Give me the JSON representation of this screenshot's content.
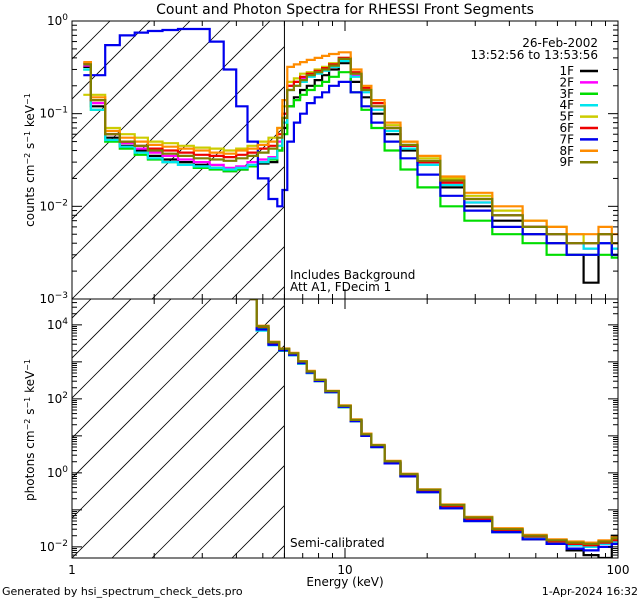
{
  "chart_data": [
    {
      "type": "line",
      "title": "Count and Photon Spectra for RHESSI Front Segments",
      "xlabel": "",
      "ylabel": "counts cm^-2 s^-1 keV^-1",
      "xscale": "log",
      "yscale": "log",
      "xlim": [
        1,
        100
      ],
      "ylim": [
        0.001,
        1
      ],
      "y_ticks": [
        {
          "value": 0.001,
          "label": "10",
          "exp": "-3"
        },
        {
          "value": 0.01,
          "label": "10",
          "exp": "-2"
        },
        {
          "value": 0.1,
          "label": "10",
          "exp": "-1"
        },
        {
          "value": 1,
          "label": "10",
          "exp": "0"
        }
      ],
      "date": "26-Feb-2002",
      "time_range": "13:52:56 to 13:53:56",
      "annotation_lines": [
        "Includes Background",
        "Att A1, FDecim 1"
      ],
      "legend_position": "top-right",
      "vertical_marker_keV": 6,
      "hatched_region_keV": [
        1,
        6
      ],
      "x": [
        1.1,
        1.25,
        1.4,
        1.6,
        1.8,
        2.0,
        2.3,
        2.6,
        3.0,
        3.4,
        3.8,
        4.2,
        4.6,
        5.0,
        5.5,
        5.8,
        6.0,
        6.3,
        6.7,
        7.0,
        7.5,
        8.0,
        8.5,
        9.0,
        10.0,
        11.0,
        12.0,
        13.0,
        15.0,
        17.0,
        20.0,
        25.0,
        30.0,
        40.0,
        50.0,
        60.0,
        70.0,
        80.0,
        90.0,
        100.0
      ],
      "series": [
        {
          "name": "1F",
          "color": "#000000",
          "values": [
            0.32,
            0.12,
            0.055,
            0.045,
            0.04,
            0.035,
            0.032,
            0.03,
            0.028,
            0.026,
            0.024,
            0.025,
            0.027,
            0.029,
            0.03,
            0.04,
            0.07,
            0.12,
            0.15,
            0.18,
            0.2,
            0.23,
            0.26,
            0.3,
            0.35,
            0.22,
            0.15,
            0.1,
            0.06,
            0.04,
            0.028,
            0.016,
            0.01,
            0.007,
            0.005,
            0.004,
            0.003,
            0.0015,
            0.004,
            0.003
          ]
        },
        {
          "name": "2F",
          "color": "#ff00ff",
          "values": [
            0.33,
            0.13,
            0.06,
            0.048,
            0.042,
            0.038,
            0.035,
            0.032,
            0.03,
            0.028,
            0.026,
            0.027,
            0.03,
            0.032,
            0.034,
            0.05,
            0.1,
            0.2,
            0.22,
            0.24,
            0.26,
            0.28,
            0.3,
            0.33,
            0.38,
            0.26,
            0.18,
            0.12,
            0.07,
            0.045,
            0.03,
            0.018,
            0.011,
            0.008,
            0.006,
            0.005,
            0.004,
            0.0035,
            0.004,
            0.0035
          ]
        },
        {
          "name": "3F",
          "color": "#00dd00",
          "values": [
            0.3,
            0.11,
            0.05,
            0.042,
            0.036,
            0.032,
            0.03,
            0.028,
            0.026,
            0.025,
            0.024,
            0.025,
            0.027,
            0.03,
            0.032,
            0.04,
            0.06,
            0.12,
            0.14,
            0.16,
            0.18,
            0.2,
            0.22,
            0.25,
            0.28,
            0.17,
            0.11,
            0.07,
            0.04,
            0.025,
            0.016,
            0.01,
            0.007,
            0.005,
            0.004,
            0.003,
            0.003,
            0.003,
            0.003,
            0.0028
          ]
        },
        {
          "name": "4F",
          "color": "#00e5ee",
          "values": [
            0.3,
            0.11,
            0.052,
            0.044,
            0.038,
            0.033,
            0.03,
            0.028,
            0.027,
            0.026,
            0.025,
            0.026,
            0.028,
            0.03,
            0.033,
            0.045,
            0.08,
            0.18,
            0.2,
            0.22,
            0.25,
            0.27,
            0.29,
            0.32,
            0.37,
            0.25,
            0.17,
            0.11,
            0.065,
            0.042,
            0.028,
            0.017,
            0.011,
            0.008,
            0.006,
            0.005,
            0.004,
            0.0035,
            0.004,
            0.0035
          ]
        },
        {
          "name": "5F",
          "color": "#cccc00",
          "values": [
            0.16,
            0.16,
            0.07,
            0.06,
            0.055,
            0.05,
            0.048,
            0.045,
            0.043,
            0.042,
            0.04,
            0.042,
            0.045,
            0.05,
            0.055,
            0.07,
            0.12,
            0.22,
            0.24,
            0.27,
            0.28,
            0.3,
            0.32,
            0.35,
            0.4,
            0.27,
            0.19,
            0.13,
            0.075,
            0.05,
            0.033,
            0.02,
            0.013,
            0.009,
            0.007,
            0.006,
            0.005,
            0.004,
            0.005,
            0.004
          ]
        },
        {
          "name": "6F",
          "color": "#ee0000",
          "values": [
            0.35,
            0.14,
            0.06,
            0.05,
            0.045,
            0.042,
            0.04,
            0.038,
            0.036,
            0.035,
            0.034,
            0.036,
            0.038,
            0.042,
            0.045,
            0.06,
            0.1,
            0.2,
            0.22,
            0.25,
            0.27,
            0.29,
            0.31,
            0.34,
            0.4,
            0.28,
            0.19,
            0.13,
            0.07,
            0.045,
            0.03,
            0.018,
            0.012,
            0.008,
            0.006,
            0.005,
            0.004,
            0.004,
            0.005,
            0.004
          ]
        },
        {
          "name": "7F",
          "color": "#0000ee",
          "values": [
            0.26,
            0.26,
            0.55,
            0.7,
            0.75,
            0.78,
            0.8,
            0.82,
            0.82,
            0.6,
            0.3,
            0.12,
            0.05,
            0.02,
            0.012,
            0.01,
            0.015,
            0.05,
            0.08,
            0.1,
            0.13,
            0.15,
            0.17,
            0.2,
            0.22,
            0.17,
            0.12,
            0.08,
            0.05,
            0.033,
            0.022,
            0.013,
            0.009,
            0.006,
            0.005,
            0.004,
            0.003,
            0.003,
            0.004,
            0.003
          ]
        },
        {
          "name": "8F",
          "color": "#ff8c00",
          "values": [
            0.36,
            0.15,
            0.065,
            0.055,
            0.05,
            0.046,
            0.044,
            0.042,
            0.04,
            0.038,
            0.037,
            0.04,
            0.042,
            0.046,
            0.05,
            0.07,
            0.14,
            0.32,
            0.34,
            0.36,
            0.38,
            0.4,
            0.42,
            0.44,
            0.46,
            0.3,
            0.2,
            0.14,
            0.08,
            0.05,
            0.035,
            0.021,
            0.014,
            0.01,
            0.007,
            0.006,
            0.005,
            0.005,
            0.006,
            0.005
          ]
        },
        {
          "name": "9F",
          "color": "#7f7f00",
          "values": [
            0.34,
            0.14,
            0.06,
            0.05,
            0.045,
            0.04,
            0.037,
            0.035,
            0.033,
            0.032,
            0.031,
            0.033,
            0.035,
            0.038,
            0.042,
            0.055,
            0.09,
            0.18,
            0.2,
            0.23,
            0.26,
            0.28,
            0.3,
            0.33,
            0.39,
            0.27,
            0.18,
            0.12,
            0.07,
            0.046,
            0.031,
            0.019,
            0.012,
            0.008,
            0.006,
            0.005,
            0.004,
            0.004,
            0.005,
            0.004
          ]
        }
      ]
    },
    {
      "type": "line",
      "title": "",
      "xlabel": "Energy (keV)",
      "ylabel": "photons cm^-2 s^-1 keV^-1",
      "xscale": "log",
      "yscale": "log",
      "xlim": [
        1,
        100
      ],
      "ylim": [
        0.005,
        50000
      ],
      "x_ticks": [
        {
          "value": 1,
          "label": "1"
        },
        {
          "value": 10,
          "label": "10"
        },
        {
          "value": 100,
          "label": "100"
        }
      ],
      "y_ticks": [
        {
          "value": 0.01,
          "label": "10",
          "exp": "-2"
        },
        {
          "value": 1,
          "label": "10",
          "exp": "0"
        },
        {
          "value": 100,
          "label": "10",
          "exp": "2"
        },
        {
          "value": 10000,
          "label": "10",
          "exp": "4"
        }
      ],
      "annotation_lines": [
        "Semi-calibrated"
      ],
      "vertical_marker_keV": 6,
      "hatched_region_keV": [
        1,
        6
      ],
      "x": [
        4.5,
        5.0,
        5.5,
        6.0,
        6.5,
        7.0,
        7.5,
        8.0,
        9.0,
        10.0,
        11.0,
        12.0,
        13.0,
        15.0,
        17.0,
        20.0,
        25.0,
        30.0,
        40.0,
        50.0,
        60.0,
        70.0,
        80.0,
        90.0,
        100.0
      ],
      "series": [
        {
          "name": "1F",
          "color": "#000000",
          "values": [
            50000,
            8000,
            3000,
            2000,
            1500,
            900,
            500,
            300,
            150,
            60,
            25,
            10,
            5,
            1.8,
            0.8,
            0.3,
            0.11,
            0.05,
            0.025,
            0.016,
            0.012,
            0.008,
            0.006,
            0.005,
            0.02
          ]
        },
        {
          "name": "2F",
          "color": "#ff00ff",
          "values": [
            50000,
            8500,
            3200,
            2100,
            1600,
            950,
            520,
            310,
            155,
            62,
            26,
            10.5,
            5.2,
            1.9,
            0.85,
            0.32,
            0.12,
            0.055,
            0.027,
            0.018,
            0.013,
            0.011,
            0.01,
            0.012,
            0.015
          ]
        },
        {
          "name": "3F",
          "color": "#00dd00",
          "values": [
            50000,
            8200,
            3100,
            2000,
            1550,
            920,
            510,
            305,
            150,
            60,
            25,
            10,
            5,
            1.85,
            0.82,
            0.31,
            0.115,
            0.052,
            0.026,
            0.017,
            0.013,
            0.011,
            0.01,
            0.012,
            0.014
          ]
        },
        {
          "name": "4F",
          "color": "#00e5ee",
          "values": [
            50000,
            7000,
            2800,
            2000,
            1500,
            900,
            500,
            300,
            150,
            60,
            25,
            10,
            5,
            1.8,
            0.8,
            0.3,
            0.11,
            0.05,
            0.025,
            0.017,
            0.013,
            0.011,
            0.01,
            0.012,
            0.014
          ]
        },
        {
          "name": "5F",
          "color": "#cccc00",
          "values": [
            50000,
            9000,
            3400,
            2200,
            1700,
            1000,
            550,
            320,
            160,
            65,
            27,
            11,
            5.5,
            2.0,
            0.9,
            0.34,
            0.13,
            0.06,
            0.03,
            0.02,
            0.015,
            0.013,
            0.012,
            0.014,
            0.016
          ]
        },
        {
          "name": "6F",
          "color": "#ee0000",
          "values": [
            50000,
            9000,
            3300,
            2150,
            1650,
            980,
            530,
            315,
            158,
            63,
            26,
            10.8,
            5.3,
            1.95,
            0.87,
            0.33,
            0.125,
            0.057,
            0.028,
            0.019,
            0.014,
            0.012,
            0.011,
            0.013,
            0.015
          ]
        },
        {
          "name": "7F",
          "color": "#0000ee",
          "values": [
            50000,
            7500,
            2900,
            2050,
            1550,
            930,
            510,
            305,
            152,
            61,
            25,
            10,
            5,
            1.8,
            0.8,
            0.3,
            0.11,
            0.05,
            0.025,
            0.016,
            0.012,
            0.009,
            0.008,
            0.01,
            0.012
          ]
        },
        {
          "name": "8F",
          "color": "#ff8c00",
          "values": [
            50000,
            9500,
            3500,
            2300,
            1750,
            1050,
            570,
            330,
            165,
            67,
            28,
            11.5,
            5.7,
            2.1,
            0.95,
            0.36,
            0.14,
            0.065,
            0.032,
            0.021,
            0.016,
            0.014,
            0.013,
            0.015,
            0.018
          ]
        },
        {
          "name": "9F",
          "color": "#7f7f00",
          "values": [
            50000,
            9200,
            3400,
            2250,
            1700,
            1020,
            550,
            325,
            162,
            65,
            27,
            11,
            5.6,
            2.05,
            0.92,
            0.35,
            0.135,
            0.062,
            0.03,
            0.02,
            0.015,
            0.013,
            0.012,
            0.014,
            0.017
          ]
        }
      ]
    }
  ],
  "footer": {
    "generated_by": "Generated by hsi_spectrum_check_dets.pro",
    "timestamp": "1-Apr-2024 16:32"
  }
}
